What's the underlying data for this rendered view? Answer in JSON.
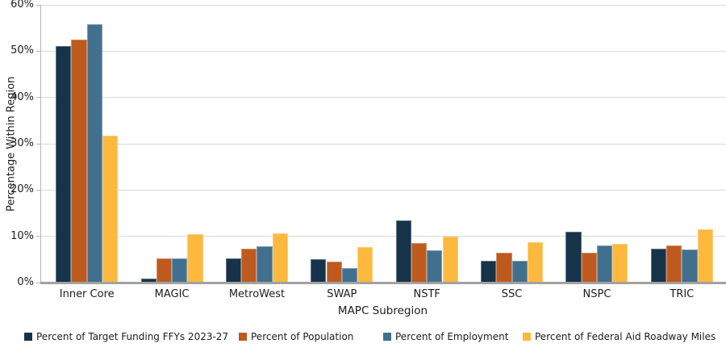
{
  "chart_data": {
    "type": "bar",
    "title": "",
    "categories": [
      "Inner Core",
      "MAGIC",
      "MetroWest",
      "SWAP",
      "NSTF",
      "SSC",
      "NSPC",
      "TRIC"
    ],
    "series": [
      {
        "name": "Percent of Target Funding FFYs 2023-27",
        "color": "#16334a",
        "values": [
          51.1,
          0.9,
          5.2,
          5.1,
          13.4,
          4.8,
          11.0,
          7.4
        ]
      },
      {
        "name": "Percent of Population",
        "color": "#bf5a1e",
        "values": [
          52.5,
          5.2,
          7.3,
          4.5,
          8.5,
          6.5,
          6.4,
          8.0
        ]
      },
      {
        "name": "Percent of Employment",
        "color": "#41708f",
        "values": [
          55.8,
          5.3,
          7.8,
          3.2,
          7.0,
          4.8,
          8.1,
          7.2
        ]
      },
      {
        "name": "Percent of Federal Aid Roadway Miles",
        "color": "#fcb93e",
        "values": [
          31.7,
          10.5,
          10.6,
          7.6,
          10.0,
          8.7,
          8.4,
          11.6
        ]
      }
    ],
    "xlabel": "MAPC Subregion",
    "ylabel": "Percentage Within Region",
    "ylim": [
      0,
      60
    ],
    "ytick_step": 10,
    "ytick_labels": [
      "0%",
      "10%",
      "20%",
      "30%",
      "40%",
      "50%",
      "60%"
    ],
    "grid": true,
    "legend_position": "bottom"
  },
  "styles": {
    "gridline_color": "#d9d9d9",
    "axis_line_color": "#a2a2a2",
    "tick_color": "#b5b5b5",
    "text_color": "#1c1c1c",
    "background": "#ffffff"
  }
}
